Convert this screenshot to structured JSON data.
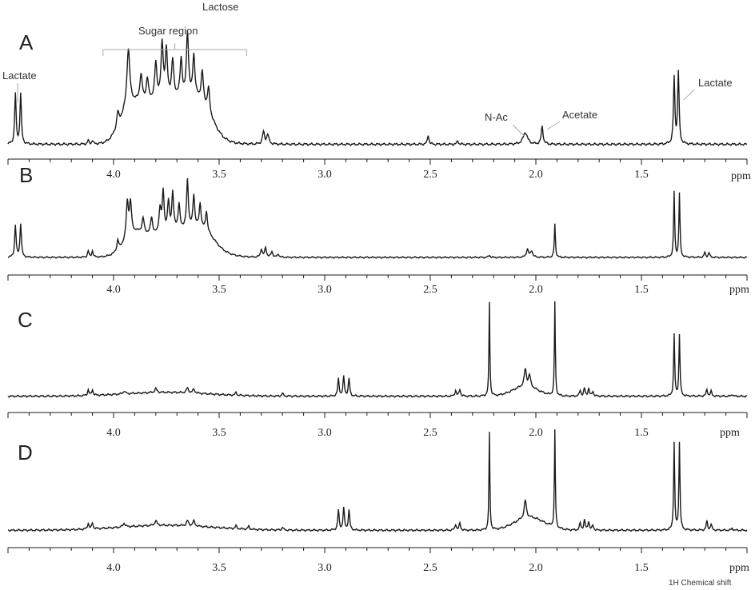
{
  "chart_data": {
    "type": "line",
    "x_axis": {
      "reversed": true,
      "range": [
        4.5,
        1.0
      ],
      "ticks": [
        4.0,
        3.5,
        3.0,
        2.5,
        2.0,
        1.5
      ],
      "tick_labels": [
        "4.0",
        "3.5",
        "3.0",
        "2.5",
        "2.0",
        "1.5"
      ],
      "unit": "ppm",
      "title": "1H Chemical shift"
    },
    "y_axis": {
      "visible": false
    },
    "grid": false,
    "panels": [
      {
        "label": "A",
        "annotations": {
          "lactose": "Lactose",
          "sugar_region": "Sugar region",
          "sugar_region_range": [
            4.05,
            3.37
          ],
          "lactate_left": "Lactate",
          "lactate_right": "Lactate",
          "nac": "N-Ac",
          "acetate": "Acetate"
        },
        "baseline": 0.03,
        "broad": [
          {
            "c": 3.93,
            "w": 0.045,
            "h": 0.22
          },
          {
            "c": 3.72,
            "w": 0.11,
            "h": 0.38
          },
          {
            "c": 3.58,
            "w": 0.05,
            "h": 0.18
          },
          {
            "c": 3.85,
            "w": 0.05,
            "h": 0.12
          }
        ],
        "peaks": [
          {
            "c": 4.465,
            "h": 0.42,
            "w": 0.004
          },
          {
            "c": 4.44,
            "h": 0.42,
            "w": 0.004
          },
          {
            "c": 4.12,
            "h": 0.03,
            "w": 0.004
          },
          {
            "c": 4.1,
            "h": 0.03,
            "w": 0.004
          },
          {
            "c": 3.98,
            "h": 0.12,
            "w": 0.006
          },
          {
            "c": 3.93,
            "h": 0.48,
            "w": 0.008
          },
          {
            "c": 3.87,
            "h": 0.22,
            "w": 0.007
          },
          {
            "c": 3.84,
            "h": 0.18,
            "w": 0.006
          },
          {
            "c": 3.8,
            "h": 0.3,
            "w": 0.006
          },
          {
            "c": 3.77,
            "h": 0.45,
            "w": 0.006
          },
          {
            "c": 3.75,
            "h": 0.38,
            "w": 0.006
          },
          {
            "c": 3.72,
            "h": 0.3,
            "w": 0.006
          },
          {
            "c": 3.68,
            "h": 0.32,
            "w": 0.006
          },
          {
            "c": 3.65,
            "h": 0.55,
            "w": 0.006
          },
          {
            "c": 3.62,
            "h": 0.35,
            "w": 0.006
          },
          {
            "c": 3.58,
            "h": 0.25,
            "w": 0.006
          },
          {
            "c": 3.55,
            "h": 0.2,
            "w": 0.006
          },
          {
            "c": 3.29,
            "h": 0.1,
            "w": 0.006
          },
          {
            "c": 3.27,
            "h": 0.08,
            "w": 0.006
          },
          {
            "c": 2.51,
            "h": 0.08,
            "w": 0.004
          },
          {
            "c": 2.37,
            "h": 0.03,
            "w": 0.004
          },
          {
            "c": 2.05,
            "h": 0.1,
            "w": 0.012
          },
          {
            "c": 1.97,
            "h": 0.15,
            "w": 0.005
          },
          {
            "c": 1.345,
            "h": 0.55,
            "w": 0.004
          },
          {
            "c": 1.325,
            "h": 0.6,
            "w": 0.004
          }
        ]
      },
      {
        "label": "B",
        "baseline": 0.03,
        "broad": [
          {
            "c": 3.9,
            "w": 0.05,
            "h": 0.22
          },
          {
            "c": 3.7,
            "w": 0.12,
            "h": 0.35
          },
          {
            "c": 3.57,
            "w": 0.05,
            "h": 0.15
          }
        ],
        "peaks": [
          {
            "c": 4.465,
            "h": 0.4,
            "w": 0.004
          },
          {
            "c": 4.44,
            "h": 0.42,
            "w": 0.004
          },
          {
            "c": 4.12,
            "h": 0.08,
            "w": 0.004
          },
          {
            "c": 4.1,
            "h": 0.08,
            "w": 0.004
          },
          {
            "c": 3.98,
            "h": 0.13,
            "w": 0.005
          },
          {
            "c": 3.935,
            "h": 0.45,
            "w": 0.006
          },
          {
            "c": 3.92,
            "h": 0.4,
            "w": 0.006
          },
          {
            "c": 3.86,
            "h": 0.18,
            "w": 0.006
          },
          {
            "c": 3.82,
            "h": 0.22,
            "w": 0.006
          },
          {
            "c": 3.78,
            "h": 0.3,
            "w": 0.006
          },
          {
            "c": 3.765,
            "h": 0.5,
            "w": 0.005
          },
          {
            "c": 3.74,
            "h": 0.35,
            "w": 0.005
          },
          {
            "c": 3.72,
            "h": 0.45,
            "w": 0.005
          },
          {
            "c": 3.69,
            "h": 0.3,
            "w": 0.005
          },
          {
            "c": 3.65,
            "h": 0.6,
            "w": 0.005
          },
          {
            "c": 3.62,
            "h": 0.4,
            "w": 0.005
          },
          {
            "c": 3.59,
            "h": 0.3,
            "w": 0.005
          },
          {
            "c": 3.56,
            "h": 0.25,
            "w": 0.005
          },
          {
            "c": 3.3,
            "h": 0.1,
            "w": 0.005
          },
          {
            "c": 3.28,
            "h": 0.12,
            "w": 0.005
          },
          {
            "c": 3.25,
            "h": 0.07,
            "w": 0.005
          },
          {
            "c": 3.22,
            "h": 0.04,
            "w": 0.005
          },
          {
            "c": 2.22,
            "h": 0.03,
            "w": 0.004
          },
          {
            "c": 2.04,
            "h": 0.1,
            "w": 0.006
          },
          {
            "c": 2.02,
            "h": 0.08,
            "w": 0.006
          },
          {
            "c": 1.91,
            "h": 0.42,
            "w": 0.003
          },
          {
            "c": 1.345,
            "h": 0.82,
            "w": 0.003
          },
          {
            "c": 1.32,
            "h": 0.8,
            "w": 0.003
          },
          {
            "c": 1.2,
            "h": 0.06,
            "w": 0.004
          },
          {
            "c": 1.18,
            "h": 0.06,
            "w": 0.004
          }
        ]
      },
      {
        "label": "C",
        "baseline": 0.02,
        "broad": [
          {
            "c": 3.75,
            "w": 0.2,
            "h": 0.04
          },
          {
            "c": 2.05,
            "w": 0.06,
            "h": 0.1
          }
        ],
        "peaks": [
          {
            "c": 4.12,
            "h": 0.06,
            "w": 0.004
          },
          {
            "c": 4.1,
            "h": 0.06,
            "w": 0.004
          },
          {
            "c": 3.95,
            "h": 0.03,
            "w": 0.006
          },
          {
            "c": 3.8,
            "h": 0.04,
            "w": 0.006
          },
          {
            "c": 3.65,
            "h": 0.05,
            "w": 0.006
          },
          {
            "c": 3.62,
            "h": 0.04,
            "w": 0.006
          },
          {
            "c": 3.42,
            "h": 0.03,
            "w": 0.004
          },
          {
            "c": 3.2,
            "h": 0.03,
            "w": 0.004
          },
          {
            "c": 2.935,
            "h": 0.18,
            "w": 0.004
          },
          {
            "c": 2.91,
            "h": 0.2,
            "w": 0.004
          },
          {
            "c": 2.885,
            "h": 0.18,
            "w": 0.004
          },
          {
            "c": 2.38,
            "h": 0.06,
            "w": 0.004
          },
          {
            "c": 2.36,
            "h": 0.07,
            "w": 0.004
          },
          {
            "c": 2.22,
            "h": 0.98,
            "w": 0.0025
          },
          {
            "c": 2.05,
            "h": 0.18,
            "w": 0.006
          },
          {
            "c": 2.03,
            "h": 0.12,
            "w": 0.006
          },
          {
            "c": 1.91,
            "h": 0.98,
            "w": 0.0025
          },
          {
            "c": 1.79,
            "h": 0.06,
            "w": 0.004
          },
          {
            "c": 1.77,
            "h": 0.08,
            "w": 0.004
          },
          {
            "c": 1.75,
            "h": 0.08,
            "w": 0.004
          },
          {
            "c": 1.73,
            "h": 0.05,
            "w": 0.004
          },
          {
            "c": 1.345,
            "h": 0.64,
            "w": 0.003
          },
          {
            "c": 1.32,
            "h": 0.64,
            "w": 0.003
          },
          {
            "c": 1.19,
            "h": 0.07,
            "w": 0.004
          },
          {
            "c": 1.17,
            "h": 0.05,
            "w": 0.004
          },
          {
            "c": 1.07,
            "h": 0.02,
            "w": 0.004
          }
        ]
      },
      {
        "label": "D",
        "baseline": 0.03,
        "broad": [
          {
            "c": 3.75,
            "w": 0.22,
            "h": 0.05
          },
          {
            "c": 2.03,
            "w": 0.07,
            "h": 0.13
          }
        ],
        "peaks": [
          {
            "c": 4.12,
            "h": 0.06,
            "w": 0.004
          },
          {
            "c": 4.1,
            "h": 0.06,
            "w": 0.004
          },
          {
            "c": 3.95,
            "h": 0.04,
            "w": 0.006
          },
          {
            "c": 3.8,
            "h": 0.05,
            "w": 0.006
          },
          {
            "c": 3.65,
            "h": 0.05,
            "w": 0.006
          },
          {
            "c": 3.62,
            "h": 0.05,
            "w": 0.006
          },
          {
            "c": 3.42,
            "h": 0.03,
            "w": 0.004
          },
          {
            "c": 3.36,
            "h": 0.03,
            "w": 0.004
          },
          {
            "c": 3.2,
            "h": 0.03,
            "w": 0.004
          },
          {
            "c": 2.935,
            "h": 0.2,
            "w": 0.004
          },
          {
            "c": 2.91,
            "h": 0.22,
            "w": 0.004
          },
          {
            "c": 2.885,
            "h": 0.2,
            "w": 0.004
          },
          {
            "c": 2.38,
            "h": 0.06,
            "w": 0.004
          },
          {
            "c": 2.36,
            "h": 0.07,
            "w": 0.004
          },
          {
            "c": 2.22,
            "h": 0.98,
            "w": 0.0025
          },
          {
            "c": 2.05,
            "h": 0.18,
            "w": 0.006
          },
          {
            "c": 1.91,
            "h": 0.98,
            "w": 0.0025
          },
          {
            "c": 1.79,
            "h": 0.07,
            "w": 0.004
          },
          {
            "c": 1.77,
            "h": 0.1,
            "w": 0.004
          },
          {
            "c": 1.75,
            "h": 0.09,
            "w": 0.004
          },
          {
            "c": 1.73,
            "h": 0.05,
            "w": 0.004
          },
          {
            "c": 1.345,
            "h": 0.88,
            "w": 0.003
          },
          {
            "c": 1.32,
            "h": 0.88,
            "w": 0.003
          },
          {
            "c": 1.19,
            "h": 0.09,
            "w": 0.004
          },
          {
            "c": 1.17,
            "h": 0.06,
            "w": 0.004
          },
          {
            "c": 1.07,
            "h": 0.02,
            "w": 0.004
          }
        ]
      }
    ],
    "line_color": "#1a1a1a"
  }
}
